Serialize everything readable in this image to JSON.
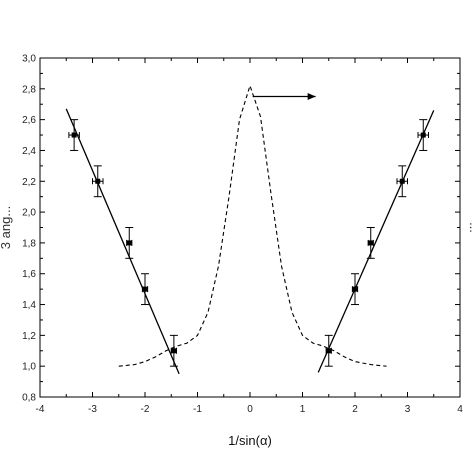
{
  "chart_data": {
    "type": "scatter",
    "xlabel": "1/sin(α)",
    "ylabel": "",
    "xlim": [
      -4,
      4
    ],
    "ylim": [
      0.8,
      3.0
    ],
    "x_ticks": [
      "-4",
      "-3",
      "-2",
      "-1",
      "0",
      "1",
      "2",
      "3",
      "4"
    ],
    "y_ticks": [
      "0,8",
      "1,0",
      "1,2",
      "1,4",
      "1,6",
      "1,8",
      "2,0",
      "2,2",
      "2,4",
      "2,6",
      "2,8",
      "3,0"
    ],
    "grid": false,
    "series": [
      {
        "style": "points-with-errorbars",
        "points": [
          {
            "x": -3.35,
            "y": 2.5,
            "xerr": 0.1,
            "yerr": 0.1
          },
          {
            "x": -2.9,
            "y": 2.2,
            "xerr": 0.1,
            "yerr": 0.1
          },
          {
            "x": -2.3,
            "y": 1.8,
            "xerr": 0.05,
            "yerr": 0.1
          },
          {
            "x": -2.0,
            "y": 1.5,
            "xerr": 0.05,
            "yerr": 0.1
          },
          {
            "x": -1.45,
            "y": 1.1,
            "xerr": 0.05,
            "yerr": 0.1
          },
          {
            "x": 1.5,
            "y": 1.1,
            "xerr": 0.05,
            "yerr": 0.1
          },
          {
            "x": 2.0,
            "y": 1.5,
            "xerr": 0.05,
            "yerr": 0.1
          },
          {
            "x": 2.3,
            "y": 1.8,
            "xerr": 0.05,
            "yerr": 0.1
          },
          {
            "x": 2.9,
            "y": 2.2,
            "xerr": 0.1,
            "yerr": 0.1
          },
          {
            "x": 3.3,
            "y": 2.5,
            "xerr": 0.1,
            "yerr": 0.1
          }
        ]
      },
      {
        "style": "fit-line-left",
        "x": [
          -3.5,
          -1.35
        ],
        "y": [
          2.67,
          0.95
        ]
      },
      {
        "style": "fit-line-right",
        "x": [
          1.3,
          3.5
        ],
        "y": [
          0.96,
          2.66
        ]
      },
      {
        "style": "dashed-curve",
        "x": [
          -2.5,
          -2.2,
          -2.0,
          -1.8,
          -1.6,
          -1.4,
          -1.2,
          -1.0,
          -0.8,
          -0.6,
          -0.4,
          -0.2,
          0.0,
          0.2,
          0.4,
          0.6,
          0.8,
          1.0,
          1.2,
          1.4,
          1.6,
          1.8,
          2.0,
          2.3,
          2.6
        ],
        "y": [
          1.0,
          1.01,
          1.03,
          1.06,
          1.1,
          1.13,
          1.15,
          1.2,
          1.35,
          1.65,
          2.1,
          2.6,
          2.82,
          2.62,
          2.12,
          1.65,
          1.35,
          1.2,
          1.15,
          1.13,
          1.1,
          1.06,
          1.03,
          1.01,
          1.0
        ]
      }
    ],
    "annotations": [
      {
        "type": "arrow",
        "from": [
          0.05,
          2.75
        ],
        "to": [
          1.25,
          2.75
        ],
        "direction": "right"
      }
    ],
    "left_axis_label_partial": "3 ang...",
    "right_axis_label_partial": "..."
  }
}
